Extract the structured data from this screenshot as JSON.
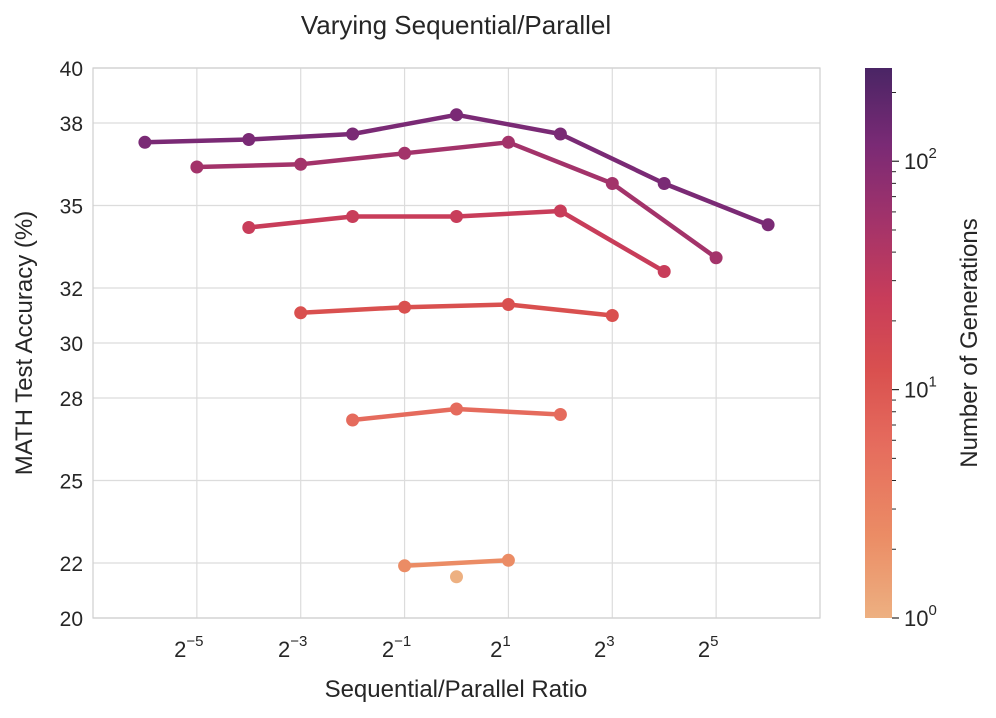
{
  "chart_data": {
    "type": "line",
    "title": "Varying Sequential/Parallel",
    "xlabel": "Sequential/Parallel Ratio",
    "ylabel": "MATH Test Accuracy (%)",
    "x_scale": "log2",
    "xlim": [
      0.0078125,
      128
    ],
    "ylim": [
      20,
      40
    ],
    "y_ticks": [
      20,
      22,
      25,
      28,
      30,
      32,
      35,
      38,
      40
    ],
    "y_tick_labels": [
      "20",
      "22",
      "25",
      "28",
      "30",
      "32",
      "35",
      "38",
      "40"
    ],
    "x_ticks": [
      {
        "value": 0.03125,
        "base": "2",
        "exp": "−5"
      },
      {
        "value": 0.125,
        "base": "2",
        "exp": "−3"
      },
      {
        "value": 0.5,
        "base": "2",
        "exp": "−1"
      },
      {
        "value": 2,
        "base": "2",
        "exp": "1"
      },
      {
        "value": 8,
        "base": "2",
        "exp": "3"
      },
      {
        "value": 32,
        "base": "2",
        "exp": "5"
      }
    ],
    "grid": true,
    "colorbar": {
      "label": "Number of Generations",
      "scale": "log",
      "range": [
        1,
        256
      ],
      "ticks": [
        {
          "value": 1,
          "base": "10",
          "exp": "0"
        },
        {
          "value": 10,
          "base": "10",
          "exp": "1"
        },
        {
          "value": 100,
          "base": "10",
          "exp": "2"
        }
      ]
    },
    "series": [
      {
        "generations": 1,
        "color": "#edb081",
        "x": [
          1
        ],
        "y": [
          21.5
        ]
      },
      {
        "generations": 2,
        "color": "#eb8c65",
        "x": [
          0.5,
          2
        ],
        "y": [
          21.9,
          22.1
        ]
      },
      {
        "generations": 4,
        "color": "#e56b5d",
        "x": [
          0.25,
          1,
          4
        ],
        "y": [
          27.2,
          27.6,
          27.4
        ]
      },
      {
        "generations": 8,
        "color": "#d9504f",
        "x": [
          0.125,
          0.5,
          2,
          8
        ],
        "y": [
          31.1,
          31.3,
          31.4,
          31.0
        ]
      },
      {
        "generations": 16,
        "color": "#c83d5a",
        "x": [
          0.0625,
          0.25,
          1,
          4,
          16
        ],
        "y": [
          34.2,
          34.6,
          34.6,
          34.8,
          32.6
        ]
      },
      {
        "generations": 32,
        "color": "#a3336a",
        "x": [
          0.03125,
          0.125,
          0.5,
          2,
          8,
          32
        ],
        "y": [
          36.4,
          36.5,
          36.9,
          37.3,
          35.8,
          33.1
        ]
      },
      {
        "generations": 64,
        "color": "#7a2a75",
        "x": [
          0.015625,
          0.0625,
          0.25,
          1,
          4,
          16,
          64
        ],
        "y": [
          37.3,
          37.4,
          37.6,
          38.3,
          37.6,
          35.8,
          34.3
        ]
      }
    ]
  }
}
